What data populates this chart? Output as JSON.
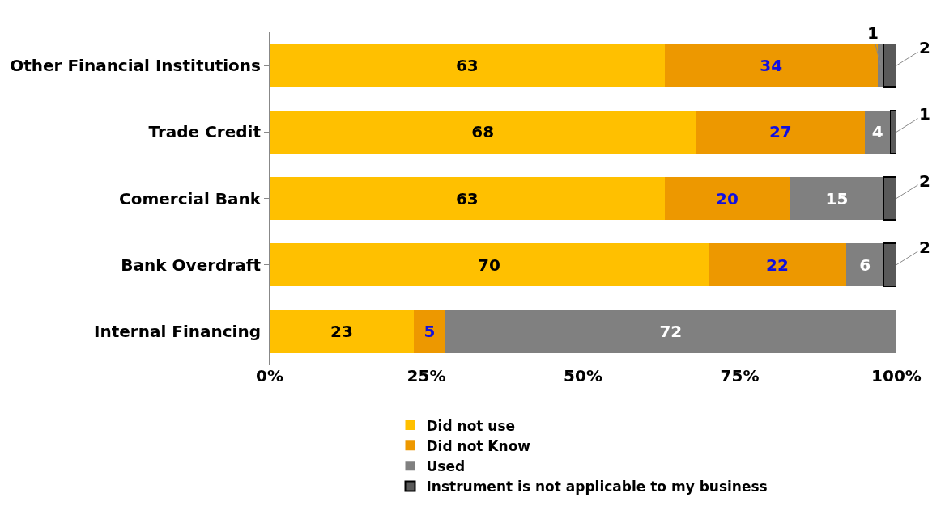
{
  "chart_data": {
    "type": "bar",
    "orientation": "horizontal",
    "stacked": true,
    "categories": [
      "Other Financial Institutions",
      "Trade Credit",
      "Comercial Bank",
      "Bank Overdraft",
      "Internal Financing"
    ],
    "series": [
      {
        "name": "Did not use",
        "color": "#ffc000",
        "values": [
          63,
          68,
          63,
          70,
          23
        ],
        "value_labels": [
          "63",
          "68",
          "63",
          "70",
          "23"
        ]
      },
      {
        "name": "Did not Know",
        "color": "#ed9800",
        "values": [
          34,
          27,
          20,
          22,
          5
        ],
        "value_labels": [
          "34",
          "27",
          "20",
          "22",
          "5"
        ]
      },
      {
        "name": "Used",
        "color": "#808080",
        "values": [
          1,
          4,
          15,
          6,
          72
        ],
        "value_labels": [
          "1",
          "4",
          "15",
          "6",
          "72"
        ]
      },
      {
        "name": "Instrument is not applicable to my business",
        "color": "#595959",
        "values": [
          2,
          1,
          2,
          2,
          0
        ],
        "value_labels": [
          "2",
          "1",
          "2",
          "2",
          null
        ]
      }
    ],
    "xlim": [
      0,
      100
    ],
    "xticks": [
      {
        "value": 0,
        "label": "0%"
      },
      {
        "value": 25,
        "label": "25%"
      },
      {
        "value": 50,
        "label": "50%"
      },
      {
        "value": 75,
        "label": "75%"
      },
      {
        "value": 100,
        "label": "100%"
      }
    ],
    "legend": "bottom"
  }
}
